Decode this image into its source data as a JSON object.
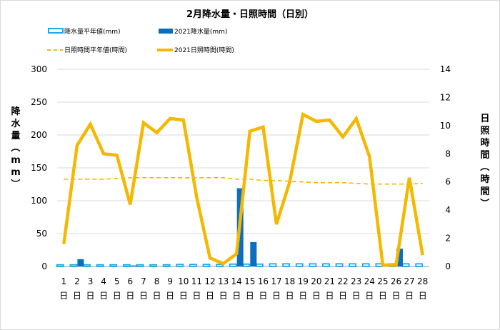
{
  "chart_data": {
    "type": "bar+line",
    "title": "2月降水量・日照時間（日別）",
    "legend": [
      {
        "label": "降水量平年値(mm)",
        "marker": "hollow-bar",
        "color": "#1ea7e6"
      },
      {
        "label": "2021降水量(mm)",
        "marker": "bar",
        "color": "#0b6fbf"
      },
      {
        "label": "日照時間平年値(時間)",
        "marker": "dashed-line",
        "color": "#f5b800"
      },
      {
        "label": "2021日照時間(時間)",
        "marker": "line",
        "color": "#f5b800"
      }
    ],
    "categories": [
      "1",
      "2",
      "3",
      "4",
      "5",
      "6",
      "7",
      "8",
      "9",
      "10",
      "11",
      "12",
      "13",
      "14",
      "15",
      "16",
      "17",
      "18",
      "19",
      "20",
      "21",
      "22",
      "23",
      "24",
      "25",
      "26",
      "27",
      "28"
    ],
    "category_suffix": "日",
    "y_left": {
      "label": "降水量（mm）",
      "ticks": [
        "0",
        "50",
        "100",
        "150",
        "200",
        "250",
        "300"
      ],
      "range": [
        0,
        300
      ]
    },
    "y_right": {
      "label": "日照時間（時間）",
      "ticks": [
        "0",
        "2",
        "4",
        "6",
        "8",
        "10",
        "12",
        "14"
      ],
      "range": [
        0,
        14
      ]
    },
    "series": [
      {
        "name": "降水量平年値(mm)",
        "type": "bar-hollow",
        "axis": "left",
        "color": "#1ea7e6",
        "values": [
          2.5,
          2.5,
          2.5,
          2.5,
          2.5,
          2.5,
          2.5,
          2.5,
          2.5,
          3,
          3,
          3,
          3,
          3.5,
          3.5,
          3.5,
          4,
          4,
          4,
          4,
          4,
          4,
          4,
          4,
          4,
          4,
          4,
          4
        ]
      },
      {
        "name": "2021降水量(mm)",
        "type": "bar",
        "axis": "left",
        "color": "#0b6fbf",
        "values": [
          0,
          11,
          0,
          0,
          0,
          1.5,
          0,
          0,
          0,
          0,
          0,
          0,
          0,
          119,
          37,
          0,
          0,
          0,
          0,
          0,
          0,
          0,
          0,
          0,
          2,
          27,
          0,
          0
        ]
      },
      {
        "name": "日照時間平年値(時間)",
        "type": "line-dashed",
        "axis": "right",
        "color": "#f5b800",
        "values": [
          6.2,
          6.2,
          6.2,
          6.2,
          6.25,
          6.3,
          6.3,
          6.3,
          6.3,
          6.3,
          6.3,
          6.3,
          6.3,
          6.2,
          6.2,
          6.1,
          6.1,
          6.05,
          6.0,
          5.95,
          5.95,
          5.95,
          5.9,
          5.85,
          5.85,
          5.85,
          5.85,
          5.9
        ]
      },
      {
        "name": "2021日照時間(時間)",
        "type": "line",
        "axis": "right",
        "color": "#f5b800",
        "values": [
          1.6,
          8.6,
          10.1,
          8.0,
          7.9,
          4.4,
          10.2,
          9.5,
          10.5,
          10.4,
          4.9,
          0.6,
          0.2,
          0.9,
          9.6,
          9.9,
          3.0,
          6.0,
          10.8,
          10.3,
          10.4,
          9.2,
          10.5,
          7.8,
          0.1,
          0.1,
          6.3,
          0.8
        ]
      }
    ]
  }
}
